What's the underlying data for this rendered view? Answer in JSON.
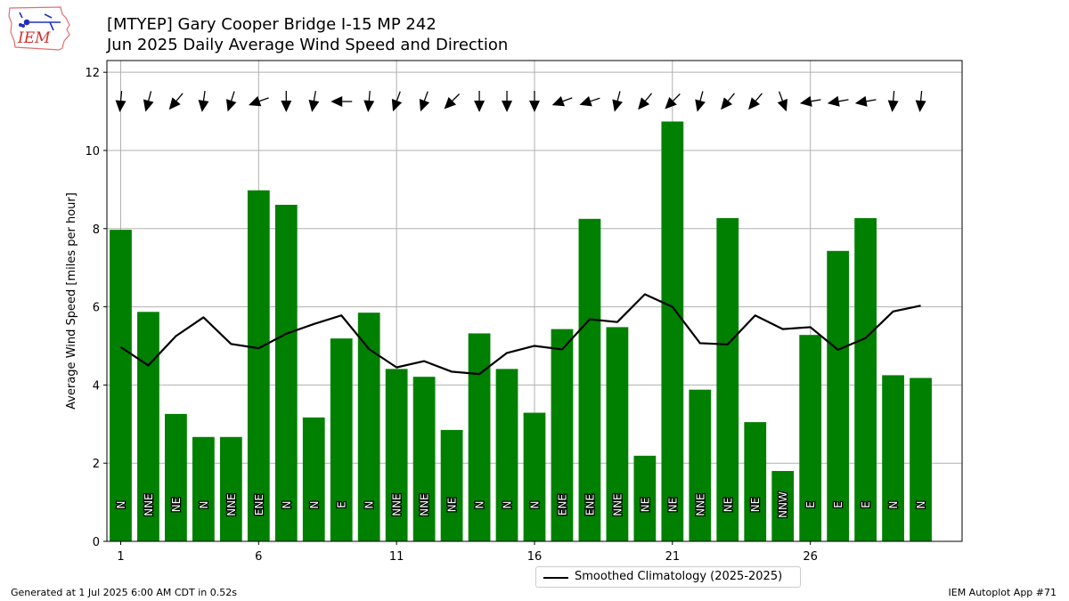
{
  "logo": {
    "text": "IEM",
    "icon": "iowa-state-weather-station-logo"
  },
  "title_line1": "[MTYEP] Gary Cooper Bridge I-15 MP 242",
  "title_line2": "Jun 2025 Daily Average Wind Speed and Direction",
  "footer_left": "Generated at 1 Jul 2025 6:00 AM CDT in 0.52s",
  "footer_right": "IEM Autoplot App #71",
  "chart_data": {
    "type": "bar",
    "title": "Jun 2025 Daily Average Wind Speed and Direction",
    "ylabel": "Average Wind Speed [miles per hour]",
    "xlabel": "",
    "ylim": [
      0,
      12.3
    ],
    "xlim": [
      0.5,
      31.5
    ],
    "x_ticks": [
      1,
      6,
      11,
      16,
      21,
      26
    ],
    "y_ticks": [
      0,
      2,
      4,
      6,
      8,
      10,
      12
    ],
    "grid": true,
    "bar_color": "#008000",
    "line_color": "#000000",
    "legend_position": "bottom-center",
    "days": [
      1,
      2,
      3,
      4,
      5,
      6,
      7,
      8,
      9,
      10,
      11,
      12,
      13,
      14,
      15,
      16,
      17,
      18,
      19,
      20,
      21,
      22,
      23,
      24,
      25,
      26,
      27,
      28,
      29,
      30
    ],
    "values": [
      7.97,
      5.87,
      3.26,
      2.67,
      2.67,
      8.98,
      8.61,
      3.17,
      5.19,
      5.85,
      4.41,
      4.21,
      2.85,
      5.32,
      4.41,
      3.29,
      5.43,
      8.25,
      5.48,
      2.19,
      10.74,
      3.88,
      8.27,
      3.05,
      1.8,
      5.28,
      7.43,
      8.27,
      4.25,
      4.18
    ],
    "directions": [
      "N",
      "NNE",
      "NE",
      "N",
      "NNE",
      "ENE",
      "N",
      "N",
      "E",
      "N",
      "NNE",
      "NNE",
      "NE",
      "N",
      "N",
      "N",
      "ENE",
      "ENE",
      "NNE",
      "NE",
      "NE",
      "NNE",
      "NE",
      "NE",
      "NNW",
      "E",
      "E",
      "E",
      "N",
      "N"
    ],
    "direction_degrees": [
      5,
      15,
      40,
      8,
      18,
      70,
      0,
      10,
      90,
      5,
      20,
      20,
      45,
      0,
      0,
      0,
      70,
      72,
      15,
      40,
      45,
      15,
      40,
      40,
      340,
      80,
      80,
      80,
      5,
      5
    ],
    "series": [
      {
        "name": "Smoothed Climatology (2025-2025)",
        "type": "line",
        "values": [
          4.97,
          4.5,
          5.25,
          5.73,
          5.05,
          4.94,
          5.31,
          5.56,
          5.78,
          4.92,
          4.45,
          4.61,
          4.34,
          4.28,
          4.82,
          5.0,
          4.91,
          5.68,
          5.61,
          6.32,
          6.0,
          5.07,
          5.04,
          5.78,
          5.43,
          5.48,
          4.9,
          5.2,
          5.88,
          6.03
        ]
      }
    ]
  }
}
